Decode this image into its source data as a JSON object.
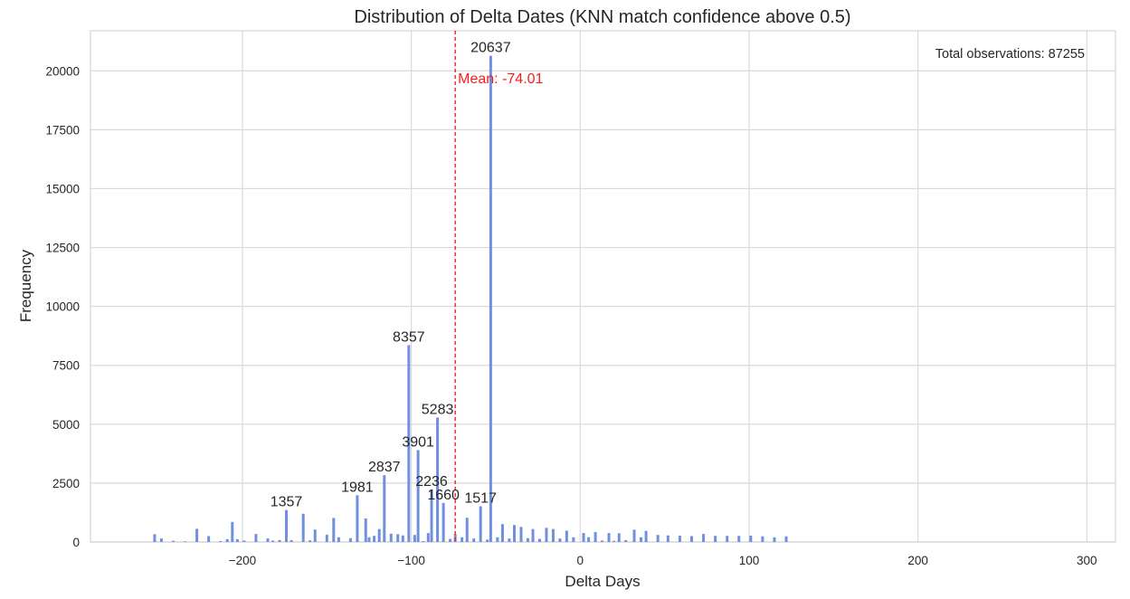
{
  "colors": {
    "bar": "#6f8fe0",
    "mean_line": "#ff1a1a",
    "grid": "#d9d9d9",
    "axes_edge": "#cccccc",
    "text": "#262626"
  },
  "chart_data": {
    "type": "bar",
    "title": "Distribution of Delta Dates (KNN match confidence above 0.5)",
    "xlabel": "Delta Days",
    "ylabel": "Frequency",
    "xlim": [
      -290,
      317
    ],
    "ylim": [
      0,
      21700
    ],
    "xticks": [
      -200,
      -100,
      0,
      100,
      200,
      300
    ],
    "xtick_labels": [
      "−200",
      "−100",
      "0",
      "100",
      "200",
      "300"
    ],
    "yticks": [
      0,
      2500,
      5000,
      7500,
      10000,
      12500,
      15000,
      17500,
      20000
    ],
    "ytick_labels": [
      "0",
      "2500",
      "5000",
      "7500",
      "10000",
      "12500",
      "15000",
      "17500",
      "20000"
    ],
    "grid": true,
    "mean": {
      "value": -74.01,
      "label": "Mean: -74.01"
    },
    "annotation": "Total observations: 87255",
    "bin_width": 1.6,
    "bars": [
      {
        "x": -252,
        "y": 330
      },
      {
        "x": -248,
        "y": 150
      },
      {
        "x": -241,
        "y": 50
      },
      {
        "x": -234,
        "y": 30
      },
      {
        "x": -227,
        "y": 560
      },
      {
        "x": -220,
        "y": 250
      },
      {
        "x": -213,
        "y": 40
      },
      {
        "x": -209,
        "y": 120
      },
      {
        "x": -206,
        "y": 850
      },
      {
        "x": -203,
        "y": 120
      },
      {
        "x": -199,
        "y": 60
      },
      {
        "x": -192,
        "y": 340
      },
      {
        "x": -185,
        "y": 150
      },
      {
        "x": -182,
        "y": 60
      },
      {
        "x": -178,
        "y": 80
      },
      {
        "x": -174,
        "y": 1357,
        "label": "1357"
      },
      {
        "x": -171,
        "y": 80
      },
      {
        "x": -164,
        "y": 1200
      },
      {
        "x": -160,
        "y": 70
      },
      {
        "x": -157,
        "y": 530
      },
      {
        "x": -150,
        "y": 310
      },
      {
        "x": -146,
        "y": 1020
      },
      {
        "x": -143,
        "y": 200
      },
      {
        "x": -136,
        "y": 160
      },
      {
        "x": -132,
        "y": 1981,
        "label": "1981"
      },
      {
        "x": -127,
        "y": 1000
      },
      {
        "x": -125,
        "y": 200
      },
      {
        "x": -122,
        "y": 260
      },
      {
        "x": -119,
        "y": 550
      },
      {
        "x": -116,
        "y": 2837,
        "label": "2837"
      },
      {
        "x": -112,
        "y": 350
      },
      {
        "x": -108,
        "y": 330
      },
      {
        "x": -105,
        "y": 280
      },
      {
        "x": -101.5,
        "y": 8357,
        "label": "8357"
      },
      {
        "x": -98,
        "y": 300
      },
      {
        "x": -96,
        "y": 3901,
        "label": "3901"
      },
      {
        "x": -93,
        "y": 40
      },
      {
        "x": -90,
        "y": 380
      },
      {
        "x": -88,
        "y": 2236,
        "label": "2236"
      },
      {
        "x": -84.5,
        "y": 5283,
        "label": "5283"
      },
      {
        "x": -81,
        "y": 1660,
        "label": "1660"
      },
      {
        "x": -77,
        "y": 130
      },
      {
        "x": -74,
        "y": 330
      },
      {
        "x": -70,
        "y": 200
      },
      {
        "x": -67,
        "y": 1030
      },
      {
        "x": -63,
        "y": 150
      },
      {
        "x": -59,
        "y": 1517,
        "label": "1517"
      },
      {
        "x": -55,
        "y": 100
      },
      {
        "x": -53,
        "y": 20637,
        "label": "20637"
      },
      {
        "x": -49,
        "y": 200
      },
      {
        "x": -46,
        "y": 760
      },
      {
        "x": -42,
        "y": 150
      },
      {
        "x": -39,
        "y": 720
      },
      {
        "x": -35,
        "y": 640
      },
      {
        "x": -31,
        "y": 160
      },
      {
        "x": -28,
        "y": 550
      },
      {
        "x": -24,
        "y": 130
      },
      {
        "x": -20,
        "y": 600
      },
      {
        "x": -16,
        "y": 550
      },
      {
        "x": -12,
        "y": 150
      },
      {
        "x": -8,
        "y": 480
      },
      {
        "x": -4,
        "y": 200
      },
      {
        "x": 2,
        "y": 380
      },
      {
        "x": 5,
        "y": 200
      },
      {
        "x": 9,
        "y": 420
      },
      {
        "x": 13,
        "y": 60
      },
      {
        "x": 17,
        "y": 380
      },
      {
        "x": 20,
        "y": 50
      },
      {
        "x": 23,
        "y": 370
      },
      {
        "x": 27,
        "y": 80
      },
      {
        "x": 32,
        "y": 520
      },
      {
        "x": 36,
        "y": 200
      },
      {
        "x": 39,
        "y": 470
      },
      {
        "x": 46,
        "y": 300
      },
      {
        "x": 52,
        "y": 280
      },
      {
        "x": 59,
        "y": 270
      },
      {
        "x": 66,
        "y": 250
      },
      {
        "x": 73,
        "y": 340
      },
      {
        "x": 80,
        "y": 260
      },
      {
        "x": 87,
        "y": 260
      },
      {
        "x": 94,
        "y": 260
      },
      {
        "x": 101,
        "y": 270
      },
      {
        "x": 108,
        "y": 240
      },
      {
        "x": 115,
        "y": 200
      },
      {
        "x": 122,
        "y": 240
      }
    ]
  }
}
